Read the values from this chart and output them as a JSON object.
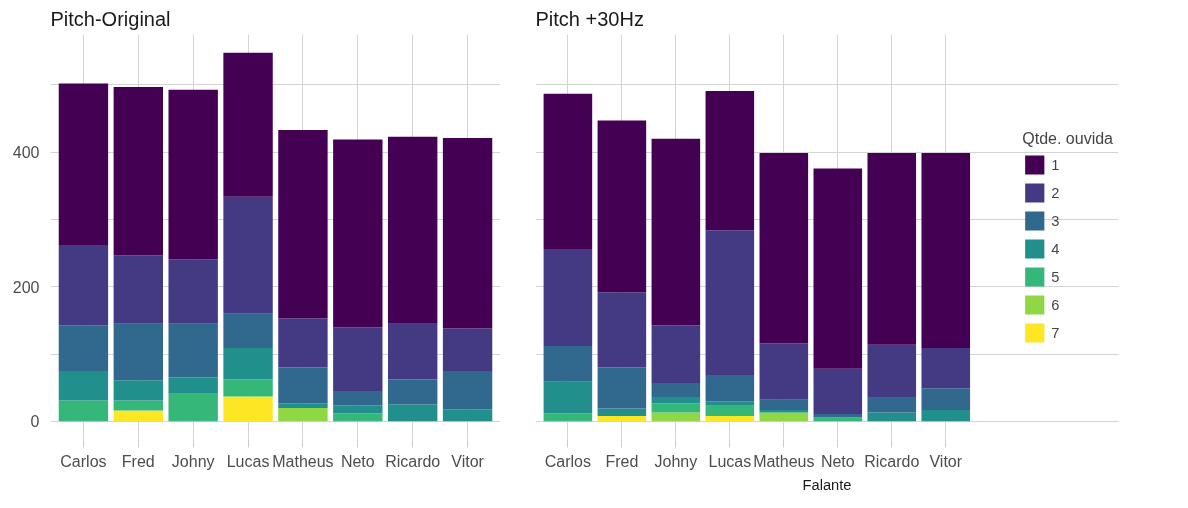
{
  "chart_data": [
    {
      "type": "bar",
      "stacked": true,
      "title": "Pitch-Original",
      "categories": [
        "Carlos",
        "Fred",
        "Johny",
        "Lucas",
        "Matheus",
        "Neto",
        "Ricardo",
        "Vitor"
      ],
      "ylim": [
        -27,
        575
      ],
      "yticks": [
        0,
        {
          "value": 100,
          "label": null
        },
        200,
        {
          "value": 300,
          "label": null
        },
        400,
        {
          "value": 500,
          "label": null
        }
      ],
      "grid": true,
      "legend": false,
      "series": [
        {
          "color": "#fde725",
          "values": [
            0,
            16,
            0,
            37,
            0,
            0,
            0,
            0
          ]
        },
        {
          "color": "#8fd744",
          "values": [
            0,
            0,
            0,
            0,
            20,
            0,
            0,
            0
          ]
        },
        {
          "color": "#35b779",
          "values": [
            31,
            15,
            41,
            25,
            0,
            12,
            0,
            0
          ]
        },
        {
          "color": "#21908c",
          "values": [
            44,
            30,
            24,
            47,
            7,
            12,
            25,
            18
          ]
        },
        {
          "color": "#31688e",
          "values": [
            68,
            84,
            80,
            51,
            53,
            21,
            37,
            57
          ]
        },
        {
          "color": "#443a83",
          "values": [
            119,
            102,
            96,
            174,
            73,
            95,
            83,
            63
          ]
        },
        {
          "color": "#440154",
          "values": [
            240,
            250,
            252,
            214,
            280,
            279,
            278,
            283
          ]
        }
      ]
    },
    {
      "type": "bar",
      "stacked": true,
      "title": "Pitch +30Hz",
      "xlabel": "Falante",
      "legend_title": "Qtde. ouvida",
      "legend": "right",
      "tick_labels": "x",
      "categories": [
        "Carlos",
        "Fred",
        "Johny",
        "Lucas",
        "Matheus",
        "Neto",
        "Ricardo",
        "Vitor"
      ],
      "ylim": [
        -27,
        575
      ],
      "yticks": [
        0,
        {
          "value": 100,
          "label": null
        },
        200,
        {
          "value": 300,
          "label": null
        },
        400,
        {
          "value": 500,
          "label": null
        }
      ],
      "grid": true,
      "series": [
        {
          "name": "7",
          "color": "#fde725",
          "values": [
            0,
            8,
            0,
            8,
            0,
            0,
            0,
            0
          ]
        },
        {
          "name": "6",
          "color": "#8fd744",
          "values": [
            0,
            0,
            13,
            0,
            13,
            0,
            0,
            0
          ]
        },
        {
          "name": "5",
          "color": "#35b779",
          "values": [
            12,
            0,
            14,
            15,
            0,
            6,
            0,
            0
          ]
        },
        {
          "name": "4",
          "color": "#21908c",
          "values": [
            47,
            11,
            9,
            7,
            4,
            0,
            13,
            17
          ]
        },
        {
          "name": "3",
          "color": "#31688e",
          "values": [
            53,
            61,
            21,
            39,
            15,
            5,
            23,
            32
          ]
        },
        {
          "name": "2",
          "color": "#443a83",
          "values": [
            144,
            112,
            86,
            215,
            84,
            67,
            78,
            60
          ]
        },
        {
          "name": "1",
          "color": "#440154",
          "values": [
            231,
            255,
            277,
            207,
            283,
            298,
            285,
            290
          ]
        }
      ]
    }
  ]
}
